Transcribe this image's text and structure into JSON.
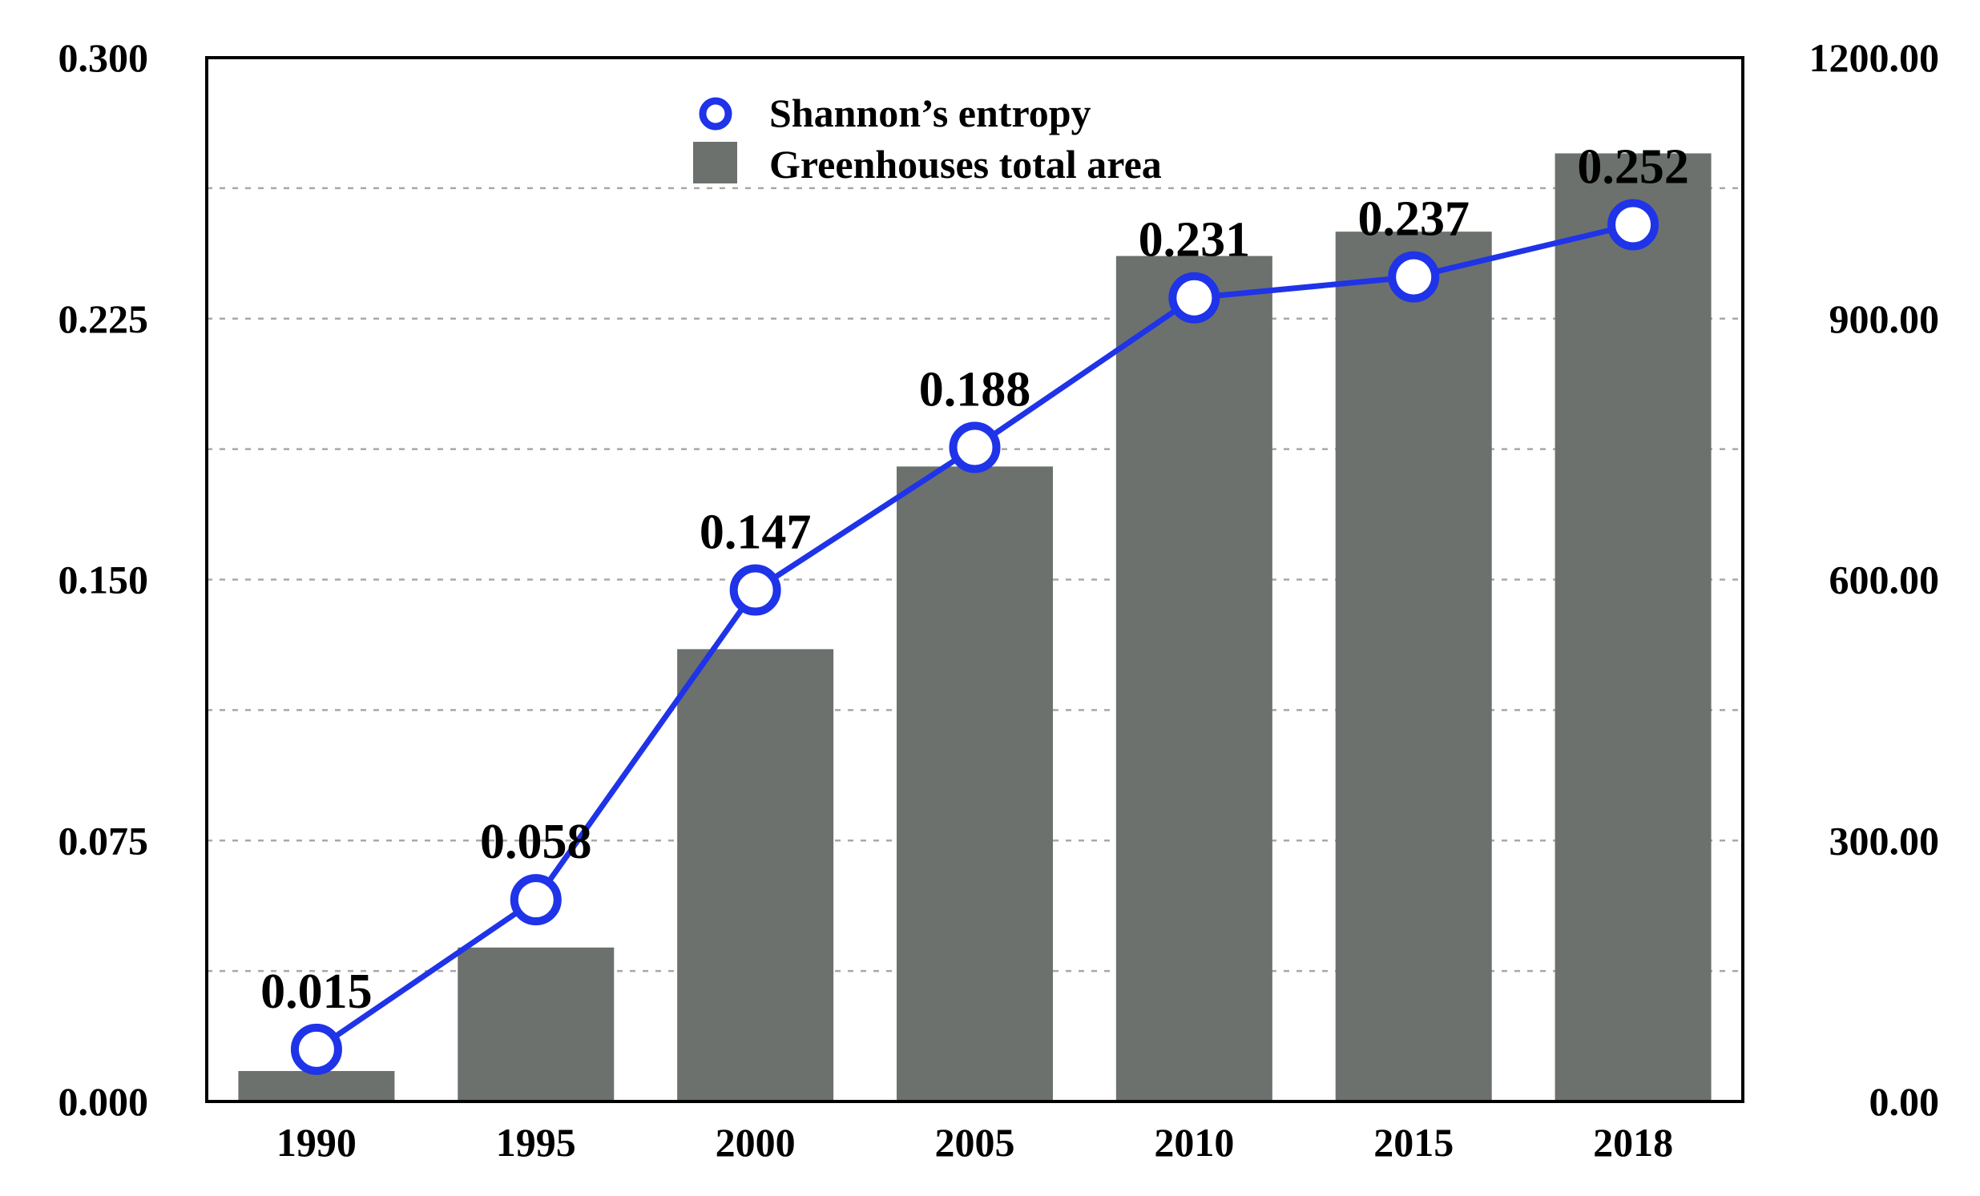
{
  "chart_data": {
    "type": "bar",
    "categories": [
      "1990",
      "1995",
      "2000",
      "2005",
      "2010",
      "2015",
      "2018"
    ],
    "series": [
      {
        "name": "Greenhouses total area",
        "kind": "bar",
        "axis": "right",
        "values": [
          35,
          177,
          520,
          730,
          972,
          1000,
          1090
        ]
      },
      {
        "name": "Shannon’s entropy",
        "kind": "line",
        "axis": "left",
        "values": [
          0.015,
          0.058,
          0.147,
          0.188,
          0.231,
          0.237,
          0.252
        ],
        "labels": [
          "0.015",
          "0.058",
          "0.147",
          "0.188",
          "0.231",
          "0.237",
          "0.252"
        ]
      }
    ],
    "y_left": {
      "ticks": [
        "0.000",
        "0.075",
        "0.150",
        "0.225",
        "0.300"
      ],
      "ylim": [
        0,
        0.3
      ]
    },
    "y_right": {
      "ticks": [
        "0.00",
        "300.00",
        "600.00",
        "900.00",
        "1200.00"
      ],
      "ylim": [
        0,
        1200
      ]
    },
    "grid": "dashed horizontal",
    "legend_position": "top-center",
    "title": "",
    "xlabel": "",
    "ylabel": ""
  },
  "colors": {
    "bar": "#6c716e",
    "line": "#1f33e8",
    "grid": "#a8a8a8",
    "frame": "#000000"
  }
}
